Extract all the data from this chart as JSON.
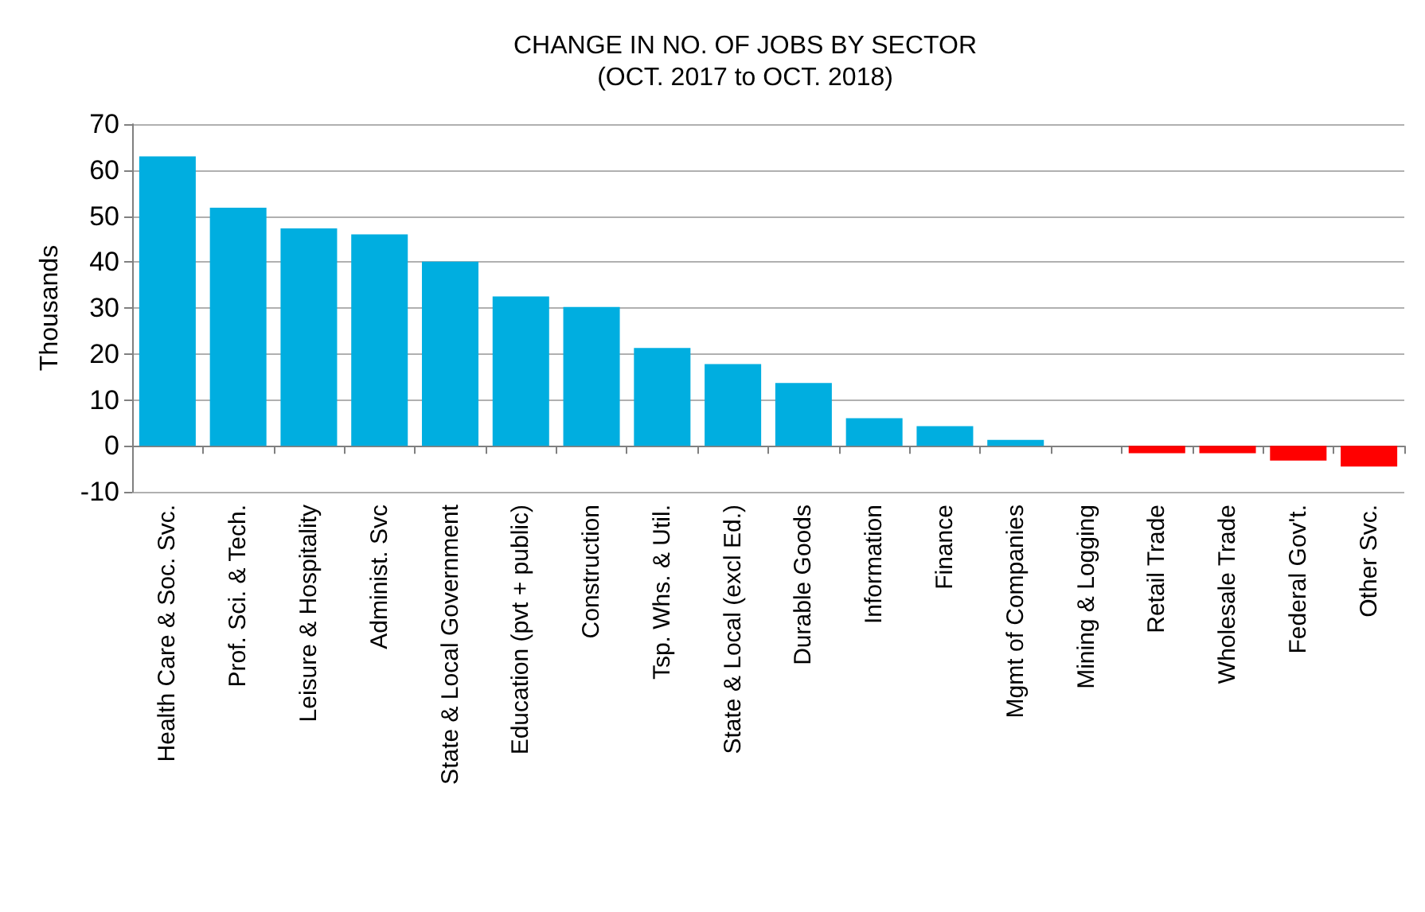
{
  "chart_data": {
    "type": "bar",
    "title": "CHANGE IN NO. OF JOBS BY SECTOR\n(OCT. 2017 to OCT. 2018)",
    "ylabel": "Thousands",
    "categories": [
      "Health Care & Soc. Svc.",
      "Prof. Sci. & Tech.",
      "Leisure & Hospitality",
      "Administ. Svc",
      "State & Local Government",
      "Education (pvt + public)",
      "Construction",
      "Tsp. Whs. & Util.",
      "State & Local (excl Ed.)",
      "Durable Goods",
      "Information",
      "Finance",
      "Mgmt of Companies",
      "Mining & Logging",
      "Retail Trade",
      "Wholesale Trade",
      "Federal Gov't.",
      "Other Svc."
    ],
    "values": [
      63,
      51.8,
      47.3,
      46,
      40.1,
      32.5,
      30.2,
      21.3,
      17.8,
      13.7,
      6,
      4.3,
      1.3,
      0,
      -1.6,
      -1.6,
      -3.2,
      -4.5
    ],
    "colors": [
      "#00aee0",
      "#00aee0",
      "#00aee0",
      "#00aee0",
      "#00aee0",
      "#00aee0",
      "#00aee0",
      "#00aee0",
      "#00aee0",
      "#00aee0",
      "#00aee0",
      "#00aee0",
      "#00aee0",
      "#00aee0",
      "#ff0000",
      "#ff0000",
      "#ff0000",
      "#ff0000"
    ],
    "ylim": [
      -10,
      70
    ],
    "yticks": [
      -10,
      0,
      10,
      20,
      30,
      40,
      50,
      60,
      70
    ],
    "grid": "y"
  }
}
